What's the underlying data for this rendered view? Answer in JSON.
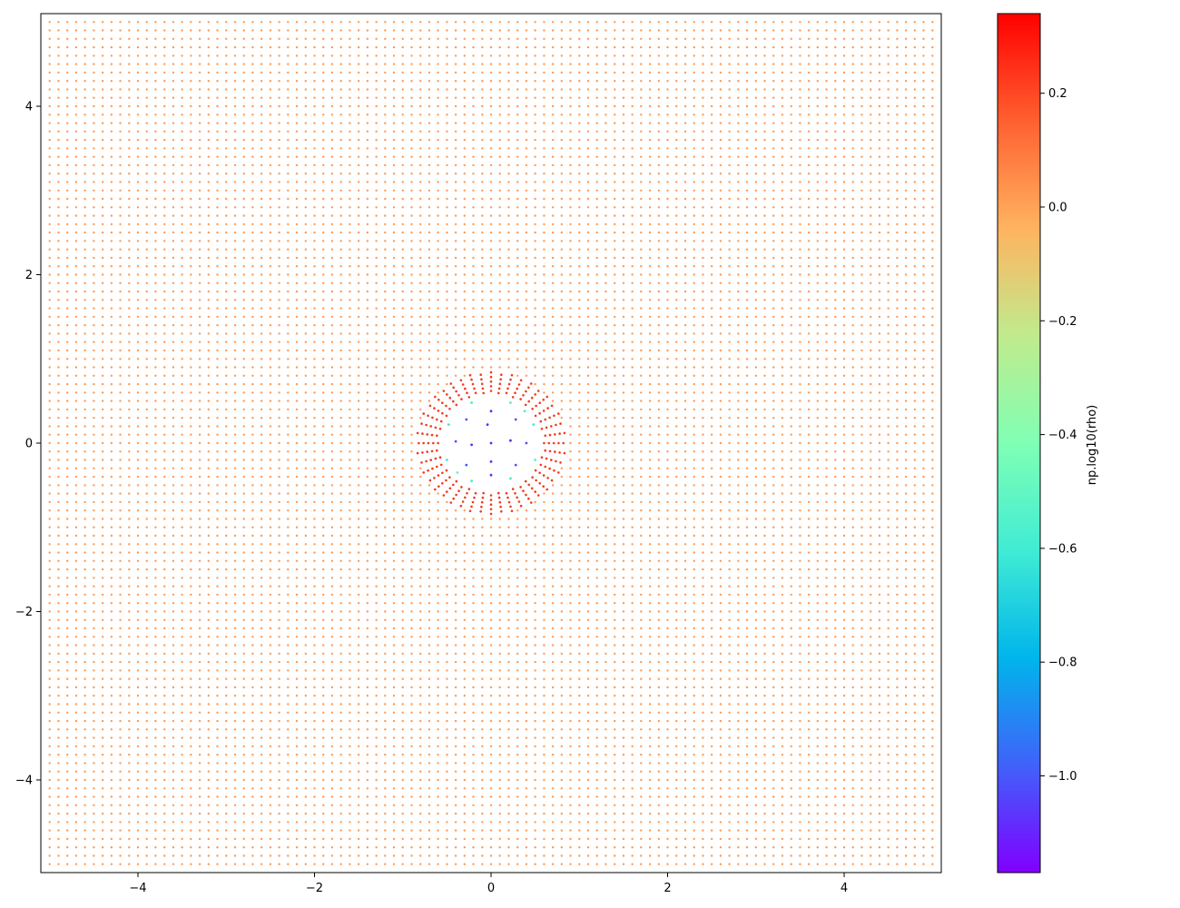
{
  "chart_data": {
    "type": "scatter",
    "title": "",
    "xlabel": "",
    "ylabel": "",
    "xlim": [
      -5.1,
      5.1
    ],
    "ylim": [
      -5.1,
      5.1
    ],
    "grid": false,
    "legend": "none",
    "x_ticks": [
      -4,
      -2,
      0,
      2,
      4
    ],
    "x_tick_labels": [
      "−4",
      "−2",
      "0",
      "2",
      "4"
    ],
    "y_ticks": [
      -4,
      -2,
      0,
      2,
      4
    ],
    "y_tick_labels": [
      "−4",
      "−2",
      "0",
      "2",
      "4"
    ],
    "series": [
      {
        "description_of_points": "uniform lattice -5..5 step 0.1, removed inside r<0.6",
        "x_range": [
          -5,
          5
        ],
        "y_range": [
          -5,
          5
        ],
        "step": 0.1,
        "value": 0.08,
        "color": "#ff9a52"
      },
      {
        "ring_inner_radius": 0.6,
        "ring_outer_radius": 0.82,
        "value": 0.3,
        "color": "#f23a1e"
      },
      {
        "inner_points": [
          {
            "x": 0.0,
            "y": 0.0,
            "value": -1.1
          },
          {
            "x": 0.0,
            "y": 0.38,
            "value": -1.1
          },
          {
            "x": -0.04,
            "y": 0.22,
            "value": -1.1
          },
          {
            "x": -0.28,
            "y": 0.28,
            "value": -1.0
          },
          {
            "x": 0.28,
            "y": 0.28,
            "value": -1.0
          },
          {
            "x": -0.4,
            "y": 0.02,
            "value": -1.0
          },
          {
            "x": -0.22,
            "y": -0.02,
            "value": -1.1
          },
          {
            "x": 0.22,
            "y": 0.03,
            "value": -1.1
          },
          {
            "x": 0.4,
            "y": 0.0,
            "value": -1.0
          },
          {
            "x": -0.28,
            "y": -0.26,
            "value": -1.0
          },
          {
            "x": 0.28,
            "y": -0.26,
            "value": -1.0
          },
          {
            "x": 0.0,
            "y": -0.22,
            "value": -1.1
          },
          {
            "x": 0.0,
            "y": -0.38,
            "value": -1.1
          }
        ]
      },
      {
        "edge_points": [
          {
            "x": -0.48,
            "y": 0.22,
            "value": -0.6
          },
          {
            "x": 0.48,
            "y": 0.22,
            "value": -0.6
          },
          {
            "x": -0.5,
            "y": -0.2,
            "value": -0.6
          },
          {
            "x": 0.5,
            "y": -0.2,
            "value": -0.55
          },
          {
            "x": -0.22,
            "y": 0.48,
            "value": -0.6
          },
          {
            "x": 0.22,
            "y": 0.48,
            "value": -0.55
          },
          {
            "x": -0.22,
            "y": -0.45,
            "value": -0.6
          },
          {
            "x": 0.22,
            "y": -0.42,
            "value": -0.6
          },
          {
            "x": -0.38,
            "y": -0.35,
            "value": -0.5
          },
          {
            "x": 0.38,
            "y": 0.38,
            "value": -0.55
          }
        ]
      }
    ],
    "colorbar": {
      "label": "np.log10(rho)",
      "vmin": -1.17,
      "vmax": 0.34,
      "colormap": "rainbow",
      "ticks": [
        0.2,
        0.0,
        -0.2,
        -0.4,
        -0.6,
        -0.8,
        -1.0
      ],
      "tick_labels": [
        "0.2",
        "0.0",
        "−0.2",
        "−0.4",
        "−0.6",
        "−0.8",
        "−1.0"
      ]
    }
  }
}
